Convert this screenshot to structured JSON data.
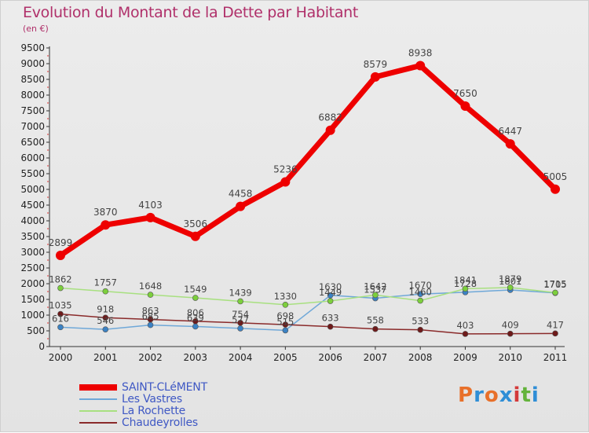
{
  "title": "Evolution du Montant de la Dette par Habitant",
  "unit": "(en €)",
  "brand": {
    "text": "Proxiti",
    "colors": [
      "#e8702a",
      "#2f8ed6",
      "#e8702a",
      "#2f8ed6",
      "#d43a3a",
      "#63b33b",
      "#2f8ed6"
    ]
  },
  "colors": {
    "title": "#b0306a",
    "legend_text": "#3f58c4",
    "axis": "#333333"
  },
  "chart_data": {
    "type": "line",
    "title": "Evolution du Montant de la Dette par Habitant",
    "subtitle": "(en €)",
    "x": [
      "2000",
      "2001",
      "2002",
      "2003",
      "2004",
      "2005",
      "2006",
      "2007",
      "2008",
      "2009",
      "2010",
      "2011"
    ],
    "ylim": [
      0,
      9500
    ],
    "yticks": [
      0,
      500,
      1000,
      1500,
      2000,
      2500,
      3000,
      3500,
      4000,
      4500,
      5000,
      5500,
      6000,
      6500,
      7000,
      7500,
      8000,
      8500,
      9000,
      9500
    ],
    "grid": false,
    "legend_position": "bottom-left",
    "series": [
      {
        "name": "SAINT-CLéMENT",
        "color": "#ee0000",
        "width": 7,
        "marker_color": "#ee0000",
        "marker_r": 6,
        "values": [
          2899,
          3870,
          4103,
          3506,
          4458,
          5236,
          6882,
          8579,
          8938,
          7650,
          6447,
          5005
        ]
      },
      {
        "name": "Les Vastres",
        "color": "#6fa8d8",
        "width": 1.5,
        "marker_color": "#3b82c4",
        "marker_r": 3.5,
        "values": [
          616,
          546,
          685,
          639,
          577,
          515,
          1630,
          1537,
          1670,
          1728,
          1801,
          1705
        ]
      },
      {
        "name": "La Rochette",
        "color": "#a8e080",
        "width": 1.5,
        "marker_color": "#7ccf3c",
        "marker_r": 3.5,
        "values": [
          1862,
          1757,
          1648,
          1549,
          1439,
          1330,
          1449,
          1642,
          1460,
          1841,
          1879,
          1715
        ]
      },
      {
        "name": "Chaudeyrolles",
        "color": "#8a2a2a",
        "width": 1.5,
        "marker_color": "#6e1a1a",
        "marker_r": 3.5,
        "values": [
          1035,
          918,
          863,
          806,
          754,
          698,
          633,
          558,
          533,
          403,
          409,
          417
        ]
      }
    ]
  }
}
